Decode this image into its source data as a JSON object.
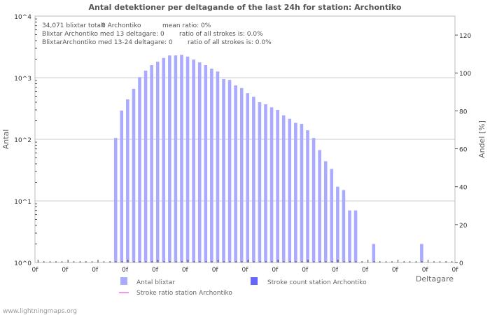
{
  "chart_data": {
    "type": "bar",
    "title": "Antal detektioner per deltagande of the last 24h for station: Archontiko",
    "xlabel": "Deltagare",
    "ylabel": "Antal",
    "y2label": "Andel [%]",
    "yscale": "log",
    "ylim": [
      1,
      10000
    ],
    "y2lim": [
      0,
      130
    ],
    "y_ticks": [
      "10^0",
      "10^1",
      "10^2",
      "10^3",
      "10^4"
    ],
    "y2_ticks": [
      "0",
      "20",
      "40",
      "60",
      "80",
      "100",
      "120"
    ],
    "x_tick_labels": [
      "0f",
      "0f",
      "0f",
      "0f",
      "0f",
      "0f",
      "0f",
      "0f",
      "0f",
      "0f",
      "0f",
      "0f",
      "0f",
      "0f",
      "0f"
    ],
    "bar_count": 70,
    "series": [
      {
        "name": "Antal blixtar",
        "color": "#aaaaff",
        "values": [
          0,
          0,
          0,
          0,
          0,
          0,
          0,
          0,
          0,
          0,
          0,
          0,
          0,
          105,
          293,
          445,
          660,
          1020,
          1300,
          1600,
          1820,
          2090,
          2300,
          2300,
          2350,
          2200,
          1970,
          1770,
          1600,
          1400,
          1260,
          950,
          920,
          750,
          680,
          560,
          490,
          400,
          370,
          330,
          300,
          245,
          215,
          185,
          178,
          140,
          105,
          67,
          44,
          33,
          17,
          15,
          7,
          7,
          0,
          0,
          2,
          0,
          0,
          0,
          0,
          0,
          0,
          0,
          2,
          0,
          0,
          0,
          0,
          0
        ]
      },
      {
        "name": "Stroke count station Archontiko",
        "color": "#6666ff",
        "values": []
      },
      {
        "name": "Stroke ratio station Archontiko",
        "color": "#ee99ee",
        "values": []
      }
    ],
    "info_lines": [
      [
        "34,071 blixtar totalt",
        "0 Archontiko",
        "mean ratio: 0%"
      ],
      [
        "Blixtar Archontiko med 13 deltagare: 0",
        "ratio of all strokes is: 0.0%"
      ],
      [
        "BlixtarArchontiko med 13-24 deltagare: 0",
        "ratio of all strokes is: 0.0%"
      ]
    ]
  },
  "footer": "www.lightningmaps.org"
}
